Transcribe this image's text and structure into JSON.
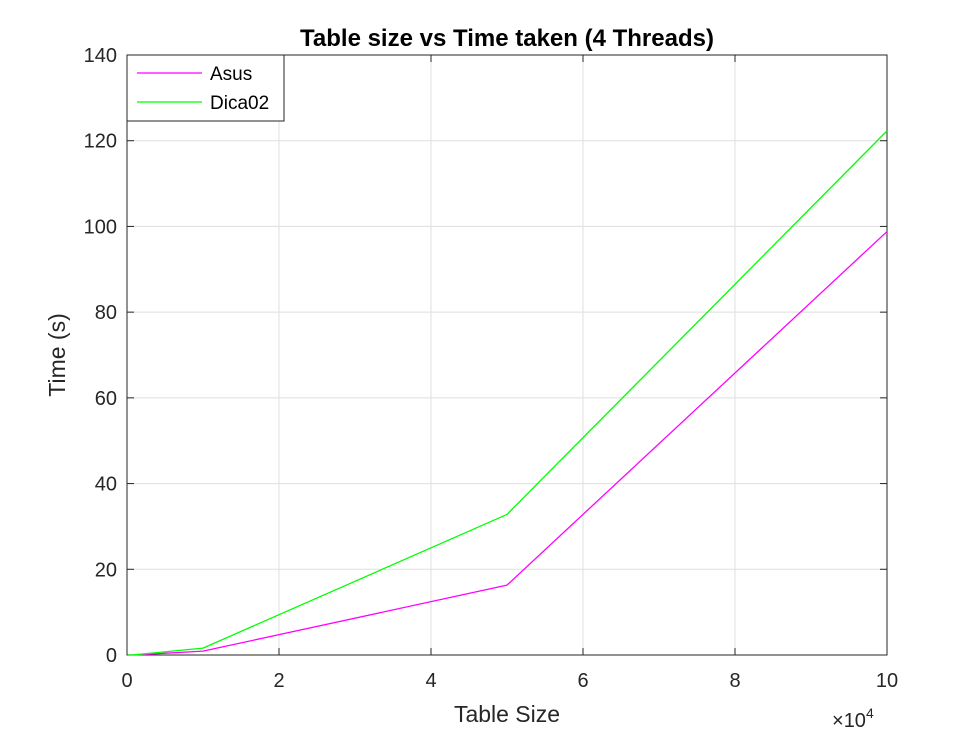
{
  "chart_data": {
    "type": "line",
    "title": "Table size vs Time taken (4 Threads)",
    "xlabel": "Table Size",
    "ylabel": "Time (s)",
    "x_exponent": {
      "base": "10",
      "power": "4"
    },
    "xlim": [
      0,
      100000
    ],
    "ylim": [
      0,
      140
    ],
    "x_ticks": [
      0,
      20000,
      40000,
      60000,
      80000,
      100000
    ],
    "x_tick_labels": [
      "0",
      "2",
      "4",
      "6",
      "8",
      "10"
    ],
    "y_ticks": [
      0,
      20,
      40,
      60,
      80,
      100,
      120,
      140
    ],
    "y_tick_labels": [
      "0",
      "20",
      "40",
      "60",
      "80",
      "100",
      "120",
      "140"
    ],
    "grid": true,
    "legend_position": "top-left",
    "series": [
      {
        "name": "Asus",
        "color": "#ff00ff",
        "x": [
          100,
          1000,
          10000,
          50000,
          100000
        ],
        "y": [
          0.0,
          0.02,
          0.9,
          16.3,
          98.8
        ]
      },
      {
        "name": "Dica02",
        "color": "#00ff00",
        "x": [
          100,
          1000,
          10000,
          50000,
          100000
        ],
        "y": [
          0.0,
          0.05,
          1.6,
          32.8,
          122.3
        ]
      }
    ]
  }
}
